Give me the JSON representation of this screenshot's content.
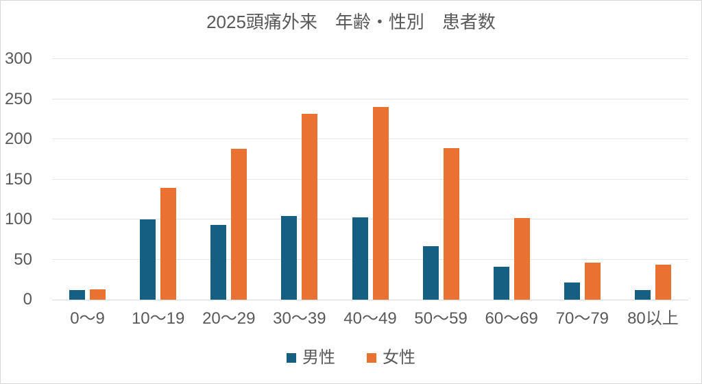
{
  "chart_data": {
    "type": "bar",
    "title": "2025頭痛外来　年齢・性別　患者数",
    "categories": [
      "0〜9",
      "10〜19",
      "20〜29",
      "30〜39",
      "40〜49",
      "50〜59",
      "60〜69",
      "70〜79",
      "80以上"
    ],
    "series": [
      {
        "key": "male",
        "name": "男性",
        "color": "#156082",
        "values": [
          12,
          100,
          93,
          104,
          103,
          67,
          41,
          21,
          12
        ]
      },
      {
        "key": "female",
        "name": "女性",
        "color": "#E97132",
        "values": [
          13,
          139,
          188,
          232,
          240,
          189,
          102,
          46,
          44
        ]
      }
    ],
    "xlabel": "",
    "ylabel": "",
    "ylim": [
      0,
      300
    ],
    "y_ticks": [
      0,
      50,
      100,
      150,
      200,
      250,
      300
    ],
    "grid": true,
    "legend_position": "bottom"
  },
  "colors": {
    "text": "#595959",
    "gridline": "#E4E4E4",
    "axis_line": "#D9D9D9",
    "chart_border": "#D6D6D6",
    "background": "#FFFFFF"
  }
}
